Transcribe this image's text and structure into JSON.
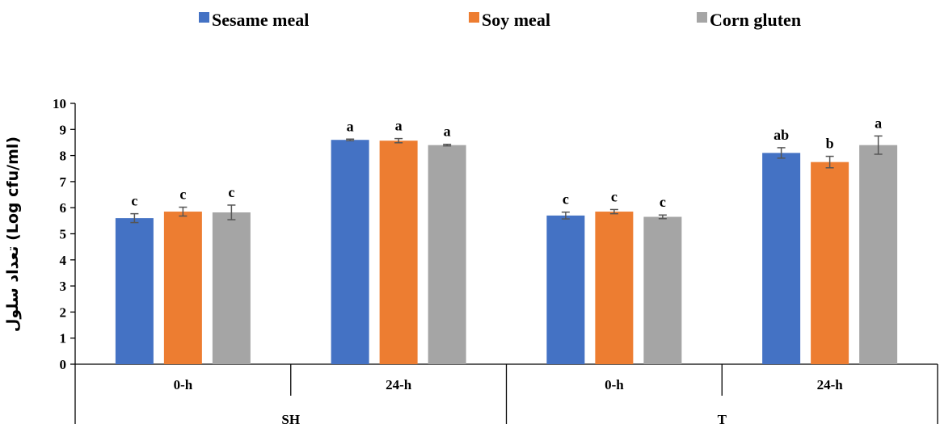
{
  "chart_data": {
    "type": "bar",
    "ylabel": "تعداد سلول (Log cfu/ml)",
    "ylim": [
      0,
      10
    ],
    "yticks": [
      0,
      1,
      2,
      3,
      4,
      5,
      6,
      7,
      8,
      9,
      10
    ],
    "grid": false,
    "legend_position": "top",
    "groups": [
      {
        "label": "SH",
        "categories": [
          "0-h",
          "24-h"
        ]
      },
      {
        "label": "T",
        "categories": [
          "0-h",
          "24-h"
        ]
      }
    ],
    "categories": [
      "0-h",
      "24-h",
      "0-h",
      "24-h"
    ],
    "series": [
      {
        "name": "Sesame meal",
        "color": "#4472C4",
        "values": [
          5.6,
          8.6,
          5.7,
          8.1
        ],
        "errors": [
          0.17,
          0.03,
          0.13,
          0.2
        ],
        "labels": [
          "c",
          "a",
          "c",
          "ab"
        ]
      },
      {
        "name": "Soy meal",
        "color": "#ED7D31",
        "values": [
          5.85,
          8.57,
          5.85,
          7.75
        ],
        "errors": [
          0.17,
          0.08,
          0.08,
          0.22
        ],
        "labels": [
          "c",
          "a",
          "c",
          "b"
        ]
      },
      {
        "name": "Corn gluten",
        "color": "#A5A5A5",
        "values": [
          5.82,
          8.4,
          5.65,
          8.4
        ],
        "errors": [
          0.28,
          0.03,
          0.07,
          0.35
        ],
        "labels": [
          "c",
          "a",
          "c",
          "a"
        ]
      }
    ]
  }
}
